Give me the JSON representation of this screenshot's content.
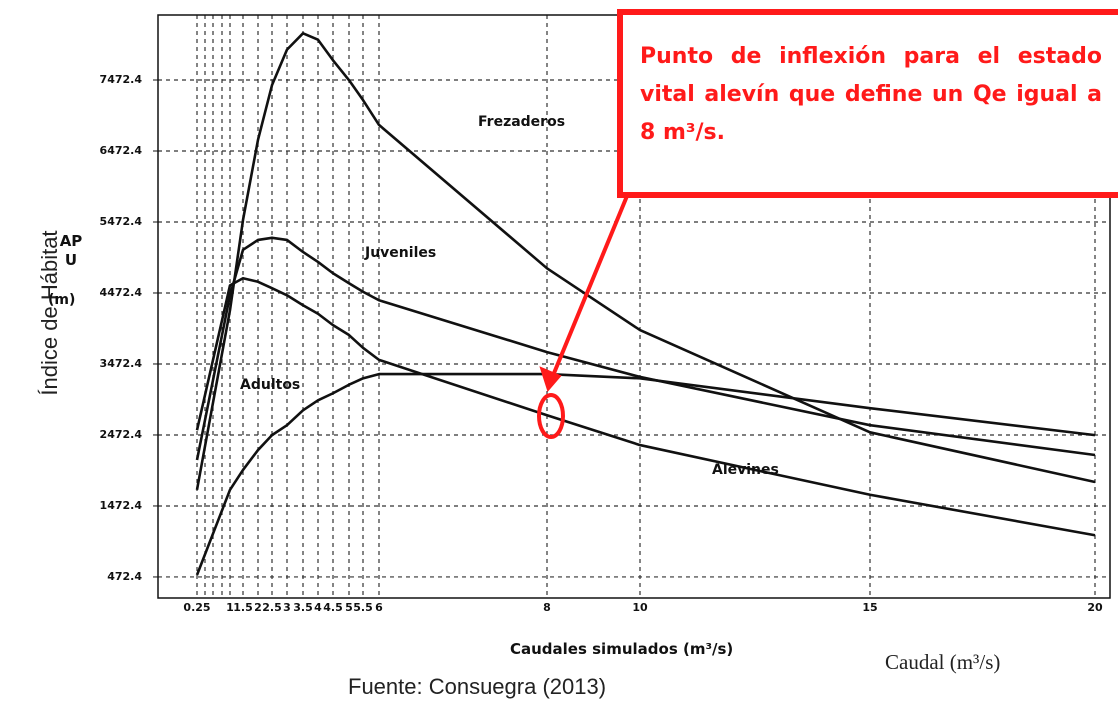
{
  "chart_data": {
    "type": "line",
    "categories": [
      "0.25",
      "1",
      "1.5",
      "2",
      "2.5",
      "3",
      "3.5",
      "4",
      "4.5",
      "5",
      "5.5",
      "6",
      "8",
      "10",
      "15",
      "20"
    ],
    "series": [
      {
        "name": "Frezaderos",
        "color": "#111111",
        "values": [
          1700,
          4230,
          5500,
          6630,
          7400,
          7900,
          8130,
          8040,
          7750,
          7470,
          7190,
          6840,
          4820,
          3950,
          2510,
          1810
        ]
      },
      {
        "name": "Juveniles",
        "color": "#111111",
        "values": [
          2120,
          4440,
          5080,
          5220,
          5250,
          5220,
          5050,
          4910,
          4750,
          4610,
          4490,
          4370,
          3640,
          3290,
          2610,
          2190
        ]
      },
      {
        "name": "Adultos",
        "color": "#111111",
        "values": [
          2540,
          4580,
          4680,
          4630,
          4540,
          4440,
          4300,
          4180,
          4020,
          3880,
          3700,
          3530,
          2750,
          2330,
          1630,
          1060
        ]
      },
      {
        "name": "Alevines",
        "color": "#111111",
        "values": [
          500,
          1700,
          1980,
          2260,
          2470,
          2610,
          2820,
          2960,
          3060,
          3180,
          3270,
          3330,
          3330,
          3270,
          2850,
          2470
        ]
      }
    ],
    "ylim": [
      176,
      8388
    ],
    "yticks": [
      472.4,
      1472.4,
      2472.4,
      3472.4,
      4472.4,
      5472.4,
      6472.4,
      7472.4
    ],
    "grid": true,
    "y_label": "Índice de Hábitat",
    "y_sublabel": "APU",
    "y_unit": "(m)",
    "x_label": "Caudales simulados (m³/s)",
    "x_label_2": "Caudal (m³/s)",
    "annotation": "Punto de inflexión para el estado vital alevín que define un Qe igual a 8 m³/s.",
    "source": "Fuente: Consuegra (2013)"
  }
}
